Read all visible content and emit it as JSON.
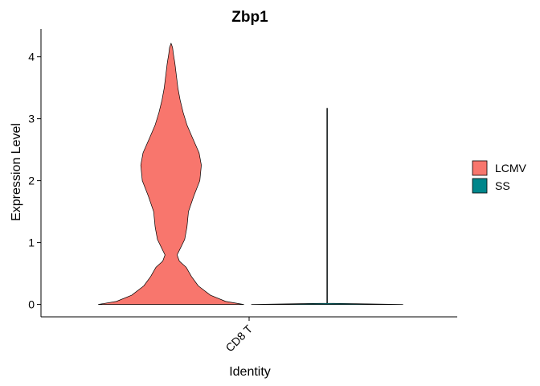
{
  "chart_data": {
    "type": "violin",
    "title": "Zbp1",
    "xlabel": "Identity",
    "ylabel": "Expression Level",
    "categories": [
      "CD8 T"
    ],
    "ylim": [
      -0.2,
      4.45
    ],
    "yticks": [
      0,
      1,
      2,
      3,
      4
    ],
    "grid": false,
    "legend_position": "right",
    "series": [
      {
        "name": "LCMV",
        "color": "#F8766D",
        "category": "CD8 T",
        "y_min": 0,
        "y_max": 4.22,
        "profile": [
          [
            0.0,
            0.96
          ],
          [
            0.05,
            0.72
          ],
          [
            0.15,
            0.52
          ],
          [
            0.3,
            0.36
          ],
          [
            0.45,
            0.27
          ],
          [
            0.6,
            0.2
          ],
          [
            0.7,
            0.11
          ],
          [
            0.8,
            0.08
          ],
          [
            0.9,
            0.12
          ],
          [
            1.05,
            0.18
          ],
          [
            1.25,
            0.21
          ],
          [
            1.5,
            0.23
          ],
          [
            1.75,
            0.3
          ],
          [
            2.0,
            0.38
          ],
          [
            2.25,
            0.4
          ],
          [
            2.45,
            0.37
          ],
          [
            2.7,
            0.28
          ],
          [
            2.9,
            0.21
          ],
          [
            3.1,
            0.16
          ],
          [
            3.3,
            0.12
          ],
          [
            3.5,
            0.09
          ],
          [
            3.7,
            0.07
          ],
          [
            3.9,
            0.05
          ],
          [
            4.05,
            0.03
          ],
          [
            4.15,
            0.02
          ],
          [
            4.22,
            0.0
          ]
        ]
      },
      {
        "name": "SS",
        "color": "#00868B",
        "category": "CD8 T",
        "y_min": 0,
        "y_max": 3.17,
        "profile": [
          [
            0.0,
            1.0
          ],
          [
            0.02,
            0.004
          ],
          [
            3.17,
            0.004
          ]
        ]
      }
    ]
  }
}
